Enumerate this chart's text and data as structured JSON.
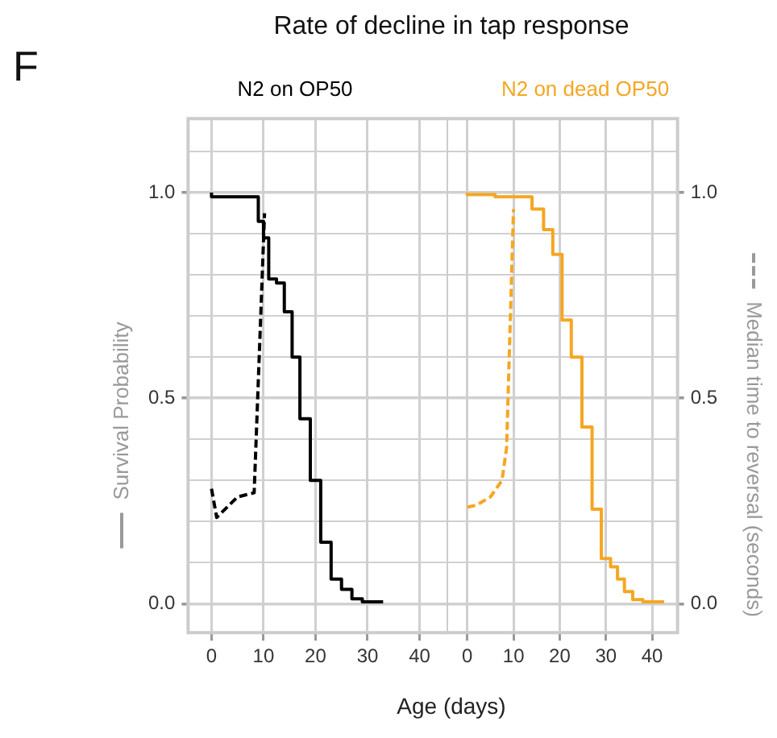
{
  "chart_data": [
    {
      "type": "step",
      "title": "Rate of decline in tap response",
      "subtitle": "N2 on OP50",
      "xlabel": "Age (days)",
      "ylabel": "Survival Probability",
      "annotations": [
        "F"
      ],
      "xlim": [
        -4.5,
        45.5
      ],
      "xticks": [
        0,
        10,
        20,
        30,
        40
      ],
      "ylim": [
        -0.07,
        1.18
      ],
      "yticks": [
        {
          "value": 0,
          "label": "0.0"
        },
        {
          "value": 0.1,
          "label": null
        },
        {
          "value": 0.2,
          "label": null
        },
        {
          "value": 0.3,
          "label": null
        },
        {
          "value": 0.4,
          "label": null
        },
        {
          "value": 0.5,
          "label": "0.5"
        },
        {
          "value": 0.6,
          "label": null
        },
        {
          "value": 0.7,
          "label": null
        },
        {
          "value": 0.8,
          "label": null
        },
        {
          "value": 0.9,
          "label": null
        },
        {
          "value": 1,
          "label": "1.0"
        },
        {
          "value": 1.1,
          "label": null
        }
      ],
      "grid": true,
      "legend": false,
      "series": [
        {
          "color": "#000000",
          "line_style": "solid",
          "x": [
            0,
            9,
            10,
            11,
            12.5,
            14,
            15.5,
            17,
            19,
            21,
            23,
            25,
            27,
            29,
            33
          ],
          "values": [
            1,
            0.99,
            0.93,
            0.89,
            0.79,
            0.78,
            0.71,
            0.6,
            0.45,
            0.3,
            0.15,
            0.06,
            0.035,
            0.012,
            0.005
          ]
        },
        {
          "type": "line",
          "color": "#000000",
          "line_style": "dashed",
          "x": [
            0,
            1,
            5,
            8.2,
            10.2
          ],
          "values": [
            0.28,
            0.21,
            0.26,
            0.27,
            0.95
          ]
        }
      ]
    },
    {
      "type": "step",
      "subtitle": "N2 on dead OP50",
      "y2label": "Median time to reversal (seconds)",
      "xlim": [
        -4.5,
        45.5
      ],
      "xticks": [
        0,
        10,
        20,
        30,
        40
      ],
      "y2lim": [
        -0.07,
        1.18
      ],
      "y2ticks": [
        {
          "value": 0,
          "label": "0.0"
        },
        {
          "value": 0.1,
          "label": null
        },
        {
          "value": 0.2,
          "label": null
        },
        {
          "value": 0.3,
          "label": null
        },
        {
          "value": 0.4,
          "label": null
        },
        {
          "value": 0.5,
          "label": "0.5"
        },
        {
          "value": 0.6,
          "label": null
        },
        {
          "value": 0.7,
          "label": null
        },
        {
          "value": 0.8,
          "label": null
        },
        {
          "value": 0.9,
          "label": null
        },
        {
          "value": 1,
          "label": "1.0"
        },
        {
          "value": 1.1,
          "label": null
        }
      ],
      "grid": true,
      "legend": false,
      "series": [
        {
          "axis": "y2",
          "color": "#f5a623",
          "line_style": "solid",
          "x": [
            0,
            6,
            14,
            16.5,
            18.5,
            20.5,
            22.5,
            24.8,
            27,
            29,
            31,
            32.5,
            34,
            35.8,
            38,
            42.6
          ],
          "values": [
            1,
            0.995,
            0.99,
            0.96,
            0.91,
            0.85,
            0.69,
            0.6,
            0.43,
            0.23,
            0.11,
            0.09,
            0.06,
            0.03,
            0.01,
            0.005
          ]
        },
        {
          "type": "line",
          "axis": "y2",
          "color": "#f5a623",
          "line_style": "dashed",
          "x": [
            0,
            2,
            5,
            7.5,
            8.5,
            10
          ],
          "values": [
            0.235,
            0.24,
            0.26,
            0.3,
            0.38,
            0.96
          ]
        }
      ]
    }
  ]
}
